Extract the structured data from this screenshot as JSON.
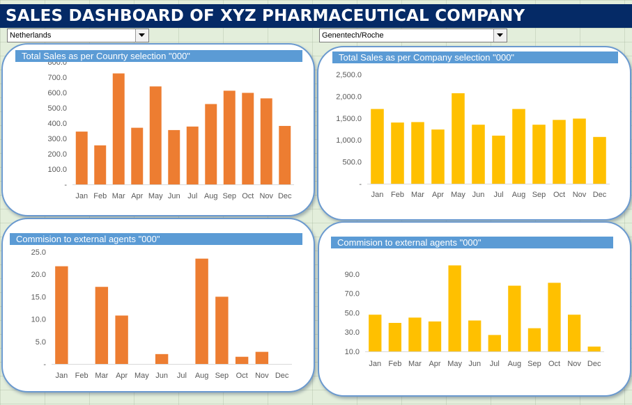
{
  "header": {
    "title": "SALES DASHBOARD OF XYZ PHARMACEUTICAL COMPANY"
  },
  "selectors": {
    "country": "Netherlands",
    "company": "Genentech/Roche"
  },
  "colors": {
    "orange": "#ed7d31",
    "gold": "#ffc000",
    "header_bg": "#052a66",
    "panel_title_bg": "#5b9bd5"
  },
  "chart_data": [
    {
      "id": "country-sales",
      "type": "bar",
      "title": "Total Sales as per Counrty selection  \"000\"",
      "categories": [
        "Jan",
        "Feb",
        "Mar",
        "Apr",
        "May",
        "Jun",
        "Jul",
        "Aug",
        "Sep",
        "Oct",
        "Nov",
        "Dec"
      ],
      "values": [
        345,
        255,
        725,
        370,
        640,
        355,
        378,
        525,
        612,
        598,
        562,
        382
      ],
      "ylim": [
        0,
        800
      ],
      "yticks": [
        "-",
        "100.0",
        "200.0",
        "300.0",
        "400.0",
        "500.0",
        "600.0",
        "700.0",
        "800.0"
      ],
      "ytick_values": [
        0,
        100,
        200,
        300,
        400,
        500,
        600,
        700,
        800
      ],
      "color": "#ed7d31"
    },
    {
      "id": "company-sales",
      "type": "bar",
      "title": "Total Sales as per Company selection  \"000\"",
      "categories": [
        "Jan",
        "Feb",
        "Mar",
        "Apr",
        "May",
        "Jun",
        "Jul",
        "Aug",
        "Sep",
        "Oct",
        "Nov",
        "Dec"
      ],
      "values": [
        1710,
        1400,
        1410,
        1240,
        2070,
        1350,
        1100,
        1710,
        1350,
        1460,
        1490,
        1070
      ],
      "ylim": [
        0,
        2500
      ],
      "yticks": [
        "-",
        "500.0",
        "1,000.0",
        "1,500.0",
        "2,000.0",
        "2,500.0"
      ],
      "ytick_values": [
        0,
        500,
        1000,
        1500,
        2000,
        2500
      ],
      "color": "#ffc000"
    },
    {
      "id": "country-commission",
      "type": "bar",
      "title": "Commision to external agents \"000\"",
      "categories": [
        "Jan",
        "Feb",
        "Mar",
        "Apr",
        "May",
        "Jun",
        "Jul",
        "Aug",
        "Sep",
        "Oct",
        "Nov",
        "Dec"
      ],
      "values": [
        21.8,
        0,
        17.2,
        10.8,
        0,
        2.2,
        0,
        23.5,
        15,
        1.6,
        2.7,
        0
      ],
      "ylim": [
        0,
        25
      ],
      "yticks": [
        "-",
        "5.0",
        "10.0",
        "15.0",
        "20.0",
        "25.0"
      ],
      "ytick_values": [
        0,
        5,
        10,
        15,
        20,
        25
      ],
      "color": "#ed7d31"
    },
    {
      "id": "company-commission",
      "type": "bar",
      "title": "Commision to external agents \"000\"",
      "categories": [
        "Jan",
        "Feb",
        "Mar",
        "Apr",
        "May",
        "Jun",
        "Jul",
        "Aug",
        "Sep",
        "Oct",
        "Nov",
        "Dec"
      ],
      "values": [
        48,
        39.5,
        45,
        41,
        99,
        42,
        27,
        78,
        34,
        81,
        48,
        15
      ],
      "ylim": [
        10,
        100
      ],
      "yticks": [
        "10.0",
        "30.0",
        "50.0",
        "70.0",
        "90.0"
      ],
      "ytick_values": [
        10,
        30,
        50,
        70,
        90
      ],
      "color": "#ffc000"
    }
  ]
}
